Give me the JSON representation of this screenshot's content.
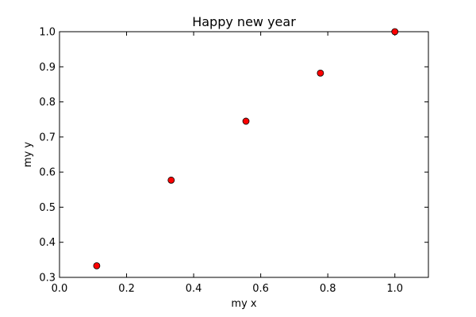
{
  "chart_data": {
    "type": "scatter",
    "title": "Happy new year",
    "xlabel": "my x",
    "ylabel": "my y",
    "xlim": [
      0.0,
      1.1
    ],
    "ylim": [
      0.3,
      1.0
    ],
    "xticks": [
      0.0,
      0.2,
      0.4,
      0.6,
      0.8,
      1.0
    ],
    "yticks": [
      0.3,
      0.4,
      0.5,
      0.6,
      0.7,
      0.8,
      0.9,
      1.0
    ],
    "xtick_labels": [
      "0.0",
      "0.2",
      "0.4",
      "0.6",
      "0.8",
      "1.0"
    ],
    "ytick_labels": [
      "0.3",
      "0.4",
      "0.5",
      "0.6",
      "0.7",
      "0.8",
      "0.9",
      "1.0"
    ],
    "grid": false,
    "legend": "none",
    "marker_color": "#ff0000",
    "marker_edge_color": "#000000",
    "points": [
      {
        "x": 0.111,
        "y": 0.333
      },
      {
        "x": 0.333,
        "y": 0.577
      },
      {
        "x": 0.556,
        "y": 0.745
      },
      {
        "x": 0.778,
        "y": 0.882
      },
      {
        "x": 1.0,
        "y": 1.0
      }
    ]
  }
}
